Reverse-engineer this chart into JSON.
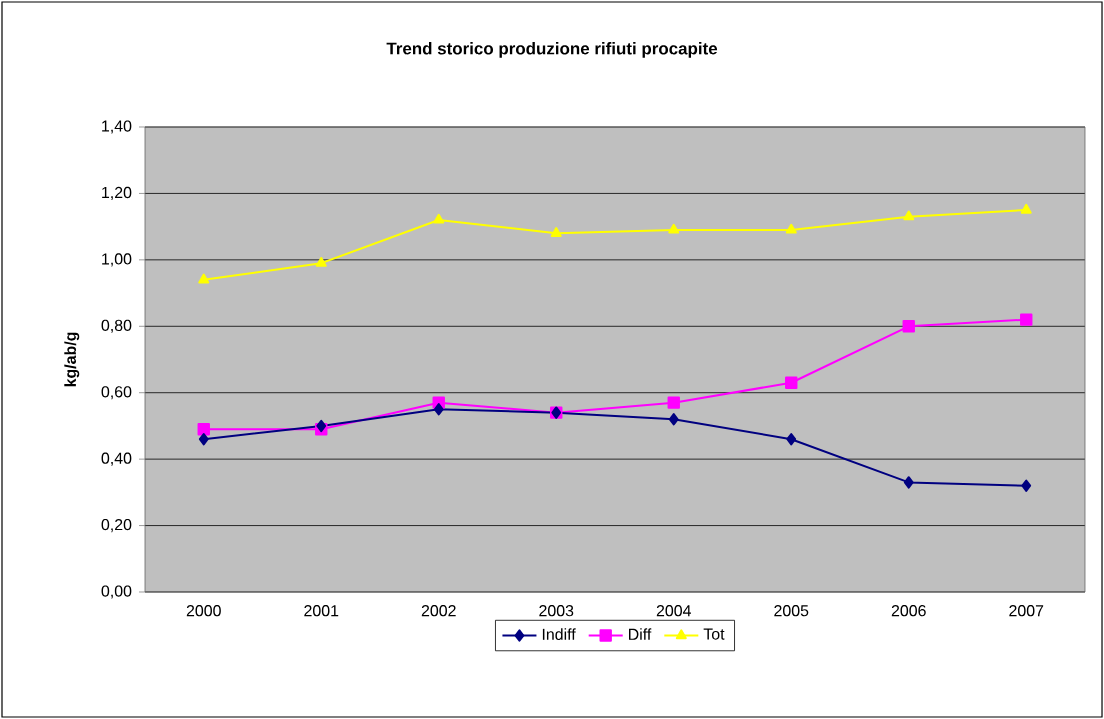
{
  "chart_data": {
    "type": "line",
    "title": "Trend storico produzione rifiuti procapite",
    "ylabel": "kg/ab/g",
    "categories": [
      "2000",
      "2001",
      "2002",
      "2003",
      "2004",
      "2005",
      "2006",
      "2007"
    ],
    "series": [
      {
        "name": "Indiff",
        "color": "#000080",
        "marker": "diamond",
        "values": [
          0.46,
          0.5,
          0.55,
          0.54,
          0.52,
          0.46,
          0.33,
          0.32
        ]
      },
      {
        "name": "Diff",
        "color": "#ff00ff",
        "marker": "square",
        "values": [
          0.49,
          0.49,
          0.57,
          0.54,
          0.57,
          0.63,
          0.8,
          0.82
        ]
      },
      {
        "name": "Tot",
        "color": "#ffff00",
        "marker": "triangle",
        "values": [
          0.94,
          0.99,
          1.12,
          1.08,
          1.09,
          1.09,
          1.13,
          1.15
        ]
      }
    ],
    "ylim": [
      0,
      1.4
    ],
    "yticks": [
      {
        "value": 0,
        "label": "0,00"
      },
      {
        "value": 0.2,
        "label": "0,20"
      },
      {
        "value": 0.4,
        "label": "0,40"
      },
      {
        "value": 0.6,
        "label": "0,60"
      },
      {
        "value": 0.8,
        "label": "0,80"
      },
      {
        "value": 1.0,
        "label": "1,00"
      },
      {
        "value": 1.2,
        "label": "1,20"
      },
      {
        "value": 1.4,
        "label": "1,40"
      }
    ],
    "grid": "y",
    "legend": "bottom",
    "line_style": "solid"
  }
}
